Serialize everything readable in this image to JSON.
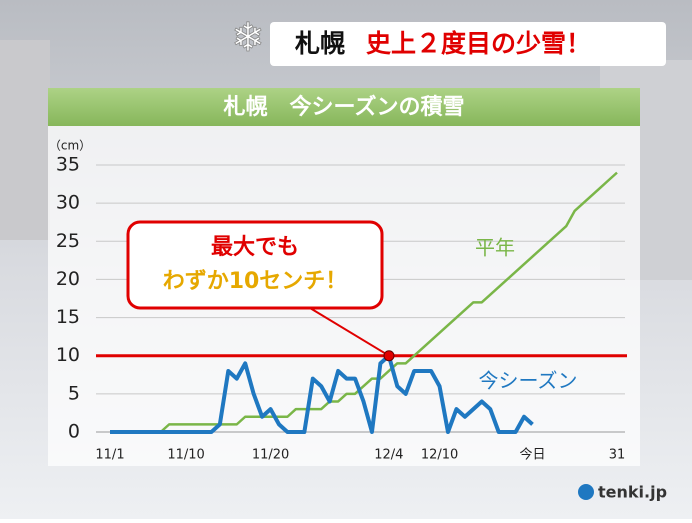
{
  "header": {
    "city": "札幌",
    "headline": "史上２度目の少雪！"
  },
  "chart_data": {
    "type": "line",
    "title": "札幌　今シーズンの積雪",
    "y_label": "（cm）",
    "categories": [
      "11/1",
      null,
      null,
      null,
      null,
      null,
      null,
      null,
      null,
      "11/10",
      null,
      null,
      null,
      null,
      null,
      null,
      null,
      null,
      null,
      "11/20",
      null,
      null,
      null,
      null,
      null,
      null,
      null,
      null,
      null,
      null,
      null,
      null,
      null,
      "12/4",
      null,
      null,
      null,
      null,
      null,
      "12/10",
      null,
      null,
      null,
      null,
      null,
      null,
      null,
      null,
      null,
      null,
      "今日",
      null,
      null,
      null,
      null,
      null,
      null,
      null,
      null,
      null,
      "31"
    ],
    "series": [
      {
        "name": "平年",
        "color": "#7ab648",
        "values": [
          0,
          0,
          0,
          0,
          0,
          0,
          0,
          1,
          1,
          1,
          1,
          1,
          1,
          1,
          1,
          1,
          2,
          2,
          2,
          2,
          2,
          2,
          3,
          3,
          3,
          3,
          4,
          4,
          5,
          5,
          6,
          7,
          7,
          8,
          9,
          9,
          10,
          11,
          12,
          13,
          14,
          15,
          16,
          17,
          17,
          18,
          19,
          20,
          21,
          22,
          23,
          24,
          25,
          26,
          27,
          29,
          30,
          31,
          32,
          33,
          34
        ]
      },
      {
        "name": "今シーズン",
        "color": "#1f78c1",
        "values": [
          0,
          0,
          0,
          0,
          0,
          0,
          0,
          0,
          0,
          0,
          0,
          0,
          0,
          1,
          8,
          7,
          9,
          5,
          2,
          3,
          1,
          0,
          0,
          0,
          7,
          6,
          4,
          8,
          7,
          7,
          4,
          0,
          9,
          10,
          6,
          5,
          8,
          8,
          8,
          6,
          0,
          3,
          2,
          3,
          4,
          3,
          0,
          0,
          0,
          2,
          1,
          null,
          null,
          null,
          null,
          null,
          null,
          null,
          null,
          null,
          null
        ]
      }
    ],
    "reference_line": {
      "value": 10,
      "color": "#e00000"
    },
    "annotation": [
      "最大でも",
      "わずか10センチ！"
    ],
    "ylim": [
      0,
      35
    ],
    "yticks": [
      0,
      5,
      10,
      15,
      20,
      25,
      30,
      35
    ],
    "grid": true
  },
  "logo": "tenki.jp"
}
